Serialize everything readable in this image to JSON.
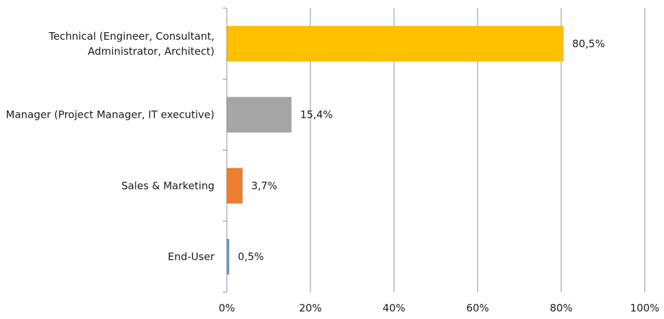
{
  "chart_data": {
    "type": "bar",
    "orientation": "horizontal",
    "categories": [
      [
        "Technical (Engineer, Consultant,",
        "Administrator, Architect)"
      ],
      [
        "Manager (Project Manager, IT executive)"
      ],
      [
        "Sales & Marketing"
      ],
      [
        "End-User"
      ]
    ],
    "values": [
      80.5,
      15.4,
      3.7,
      0.5
    ],
    "value_labels": [
      "80,5%",
      "15,4%",
      "3,7%",
      "0,5%"
    ],
    "bar_colors": [
      "#FFC000",
      "#A5A5A5",
      "#ED7D31",
      "#5B9BD5"
    ],
    "xlim": [
      0,
      100
    ],
    "x_ticks": [
      0,
      20,
      40,
      60,
      80,
      100
    ],
    "x_tick_labels": [
      "0%",
      "20%",
      "40%",
      "60%",
      "80%",
      "100%"
    ],
    "grid": true,
    "legend": "none",
    "title": "",
    "xlabel": "",
    "ylabel": ""
  }
}
